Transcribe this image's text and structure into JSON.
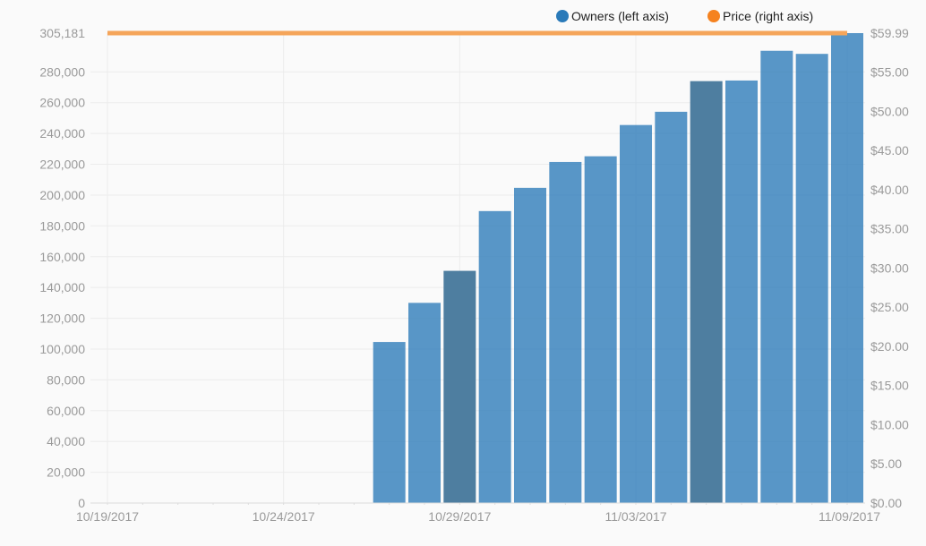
{
  "chart_data": {
    "type": "bar",
    "title": "",
    "xlabel": "",
    "ylabel": "",
    "legend": {
      "placement": "top-right",
      "entries": [
        {
          "name": "Owners (left axis)",
          "color": "#2a7ab9"
        },
        {
          "name": "Price (right axis)",
          "color": "#f5821f"
        }
      ]
    },
    "x_ticks": [
      "10/19/2017",
      "10/24/2017",
      "10/29/2017",
      "11/03/2017",
      "11/09/2017"
    ],
    "y_left": {
      "range": [
        0,
        305181
      ],
      "ticks": [
        "0",
        "20,000",
        "40,000",
        "60,000",
        "80,000",
        "100,000",
        "120,000",
        "140,000",
        "160,000",
        "180,000",
        "200,000",
        "220,000",
        "240,000",
        "260,000",
        "280,000"
      ],
      "max_label": "305,181"
    },
    "y_right": {
      "range": [
        0,
        59.99
      ],
      "ticks": [
        "$0.00",
        "$5.00",
        "$10.00",
        "$15.00",
        "$20.00",
        "$25.00",
        "$30.00",
        "$35.00",
        "$40.00",
        "$45.00",
        "$50.00",
        "$55.00"
      ],
      "max_label": "$59.99"
    },
    "grid": true,
    "series": [
      {
        "name": "Owners (left axis)",
        "type": "bar",
        "axis": "left",
        "color": "#2a7ab9",
        "highlight_color": "#4e7ea0",
        "points": [
          {
            "date": "10/27/2017",
            "value": 104600,
            "highlight": false
          },
          {
            "date": "10/28/2017",
            "value": 130000,
            "highlight": false
          },
          {
            "date": "10/29/2017",
            "value": 150800,
            "highlight": true
          },
          {
            "date": "10/30/2017",
            "value": 189600,
            "highlight": false
          },
          {
            "date": "10/31/2017",
            "value": 204700,
            "highlight": false
          },
          {
            "date": "11/01/2017",
            "value": 221500,
            "highlight": false
          },
          {
            "date": "11/02/2017",
            "value": 225200,
            "highlight": false
          },
          {
            "date": "11/03/2017",
            "value": 245500,
            "highlight": false
          },
          {
            "date": "11/04/2017",
            "value": 254100,
            "highlight": false
          },
          {
            "date": "11/05/2017",
            "value": 274000,
            "highlight": true
          },
          {
            "date": "11/06/2017",
            "value": 274400,
            "highlight": false
          },
          {
            "date": "11/07/2017",
            "value": 293700,
            "highlight": false
          },
          {
            "date": "11/08/2017",
            "value": 291700,
            "highlight": false
          },
          {
            "date": "11/09/2017",
            "value": 305181,
            "highlight": false
          }
        ]
      },
      {
        "name": "Price (right axis)",
        "type": "line",
        "axis": "right",
        "color": "#f5a55a",
        "points": [
          {
            "date": "10/19/2017",
            "value": 59.99
          },
          {
            "date": "11/09/2017",
            "value": 59.99
          }
        ]
      }
    ]
  }
}
